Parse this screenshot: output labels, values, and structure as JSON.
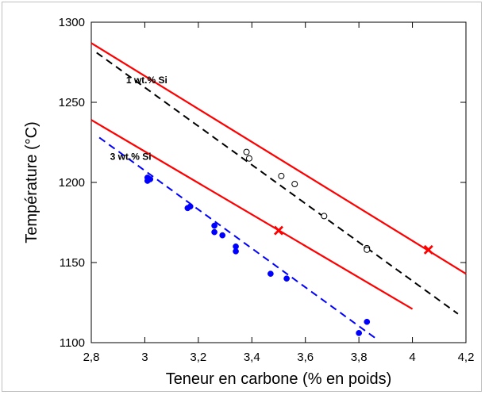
{
  "chart_data": {
    "type": "scatter",
    "title": "",
    "xlabel": "Teneur en carbone (% en poids)",
    "ylabel": "Température (°C)",
    "xlim": [
      2.8,
      4.2
    ],
    "ylim": [
      1100,
      1300
    ],
    "x_ticks": [
      2.8,
      3.0,
      3.2,
      3.4,
      3.6,
      3.8,
      4.0,
      4.2
    ],
    "x_tick_labels": [
      "2,8",
      "3",
      "3,2",
      "3,4",
      "3,6",
      "3,8",
      "4",
      "4,2"
    ],
    "y_ticks": [
      1100,
      1150,
      1200,
      1250,
      1300
    ],
    "y_tick_labels": [
      "1100",
      "1150",
      "1200",
      "1250",
      "1300"
    ],
    "grid": false,
    "lines": [
      {
        "style": "solid",
        "color": "#ff0000",
        "x": [
          2.8,
          4.2
        ],
        "y": [
          1287,
          1143
        ]
      },
      {
        "style": "solid",
        "color": "#ff0000",
        "x": [
          2.8,
          4.0
        ],
        "y": [
          1239,
          1121
        ]
      },
      {
        "style": "dashed",
        "color": "#000000",
        "x": [
          2.82,
          4.17
        ],
        "y": [
          1281,
          1118
        ]
      },
      {
        "style": "dashed",
        "color": "#0000ff",
        "x": [
          2.83,
          3.86
        ],
        "y": [
          1228,
          1103
        ]
      }
    ],
    "series": [
      {
        "marker": "open-circle",
        "color": "#000000",
        "x": [
          3.38,
          3.39,
          3.51,
          3.56,
          3.67,
          3.83,
          3.83
        ],
        "y": [
          1219,
          1215,
          1204,
          1199,
          1179,
          1159,
          1158
        ]
      },
      {
        "marker": "filled-circle",
        "color": "#0000ff",
        "x": [
          3.01,
          3.01,
          3.02,
          3.16,
          3.17,
          3.26,
          3.26,
          3.29,
          3.34,
          3.34,
          3.47,
          3.53,
          3.8,
          3.83
        ],
        "y": [
          1203,
          1201,
          1202,
          1184,
          1185,
          1173,
          1169,
          1167,
          1160,
          1157,
          1143,
          1140,
          1106,
          1113
        ]
      },
      {
        "marker": "cross",
        "color": "#ff0000",
        "x": [
          3.5,
          4.06
        ],
        "y": [
          1170,
          1158
        ]
      }
    ],
    "annotations": [
      {
        "text": "1 wt.% Si",
        "x": 2.93,
        "y": 1262
      },
      {
        "text": "3 wt.% Si",
        "x": 2.87,
        "y": 1214
      }
    ]
  }
}
